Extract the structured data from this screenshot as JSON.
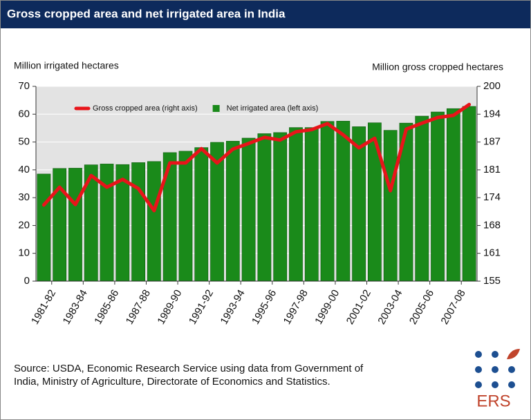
{
  "chart_data": {
    "type": "bar",
    "title": "Gross cropped area and net irrigated area in India",
    "y_label": "Million irrigated hectares",
    "y2_label": "Million gross cropped hectares",
    "categories": [
      "1981-82",
      null,
      "1983-84",
      null,
      "1985-86",
      null,
      "1987-88",
      null,
      "1989-90",
      null,
      "1991-92",
      null,
      "1993-94",
      null,
      "1995-96",
      null,
      "1997-98",
      null,
      "1999-00",
      null,
      "2001-02",
      null,
      "2003-04",
      null,
      "2005-06",
      null,
      "2007-08",
      null
    ],
    "series": [
      {
        "name": "Gross cropped area (right axis)",
        "type": "line",
        "axis": "y2",
        "color": "#e8141a",
        "values": [
          172.6,
          176.7,
          172.7,
          179.4,
          176.7,
          178.5,
          176.4,
          171.3,
          182.3,
          182.3,
          185.6,
          182.3,
          185.5,
          186.8,
          188.2,
          187.6,
          189.5,
          190.0,
          191.4,
          188.8,
          185.8,
          188.0,
          175.9,
          190.1,
          191.5,
          192.8,
          193.3,
          195.8
        ]
      },
      {
        "name": "Net irrigated area (left axis)",
        "type": "bar",
        "color": "#1a8a1a",
        "values": [
          38.5,
          40.5,
          40.6,
          41.8,
          42.1,
          41.9,
          42.6,
          43.0,
          46.2,
          46.7,
          48.0,
          49.9,
          50.3,
          51.4,
          53.0,
          53.4,
          55.2,
          55.2,
          57.4,
          57.5,
          55.5,
          56.9,
          54.2,
          56.8,
          59.3,
          60.8,
          62.0,
          62.8
        ]
      }
    ],
    "ylim": [
      0,
      70
    ],
    "yticks": [
      0,
      10,
      20,
      30,
      40,
      50,
      60,
      70
    ],
    "y2lim": [
      155,
      200
    ],
    "y2ticks": [
      155,
      {
        "value": 161.43,
        "label": "161"
      },
      {
        "value": 167.86,
        "label": "168"
      },
      {
        "value": 174.29,
        "label": "174"
      },
      {
        "value": 180.71,
        "label": "181"
      },
      {
        "value": 187.14,
        "label": "187"
      },
      {
        "value": 193.57,
        "label": "194"
      },
      200
    ],
    "grid": true,
    "source": [
      "Source: USDA, Economic Research Service using data from Government of",
      "India, Ministry of Agriculture, Directorate of Economics and Statistics."
    ],
    "logo_text": "ERS"
  }
}
